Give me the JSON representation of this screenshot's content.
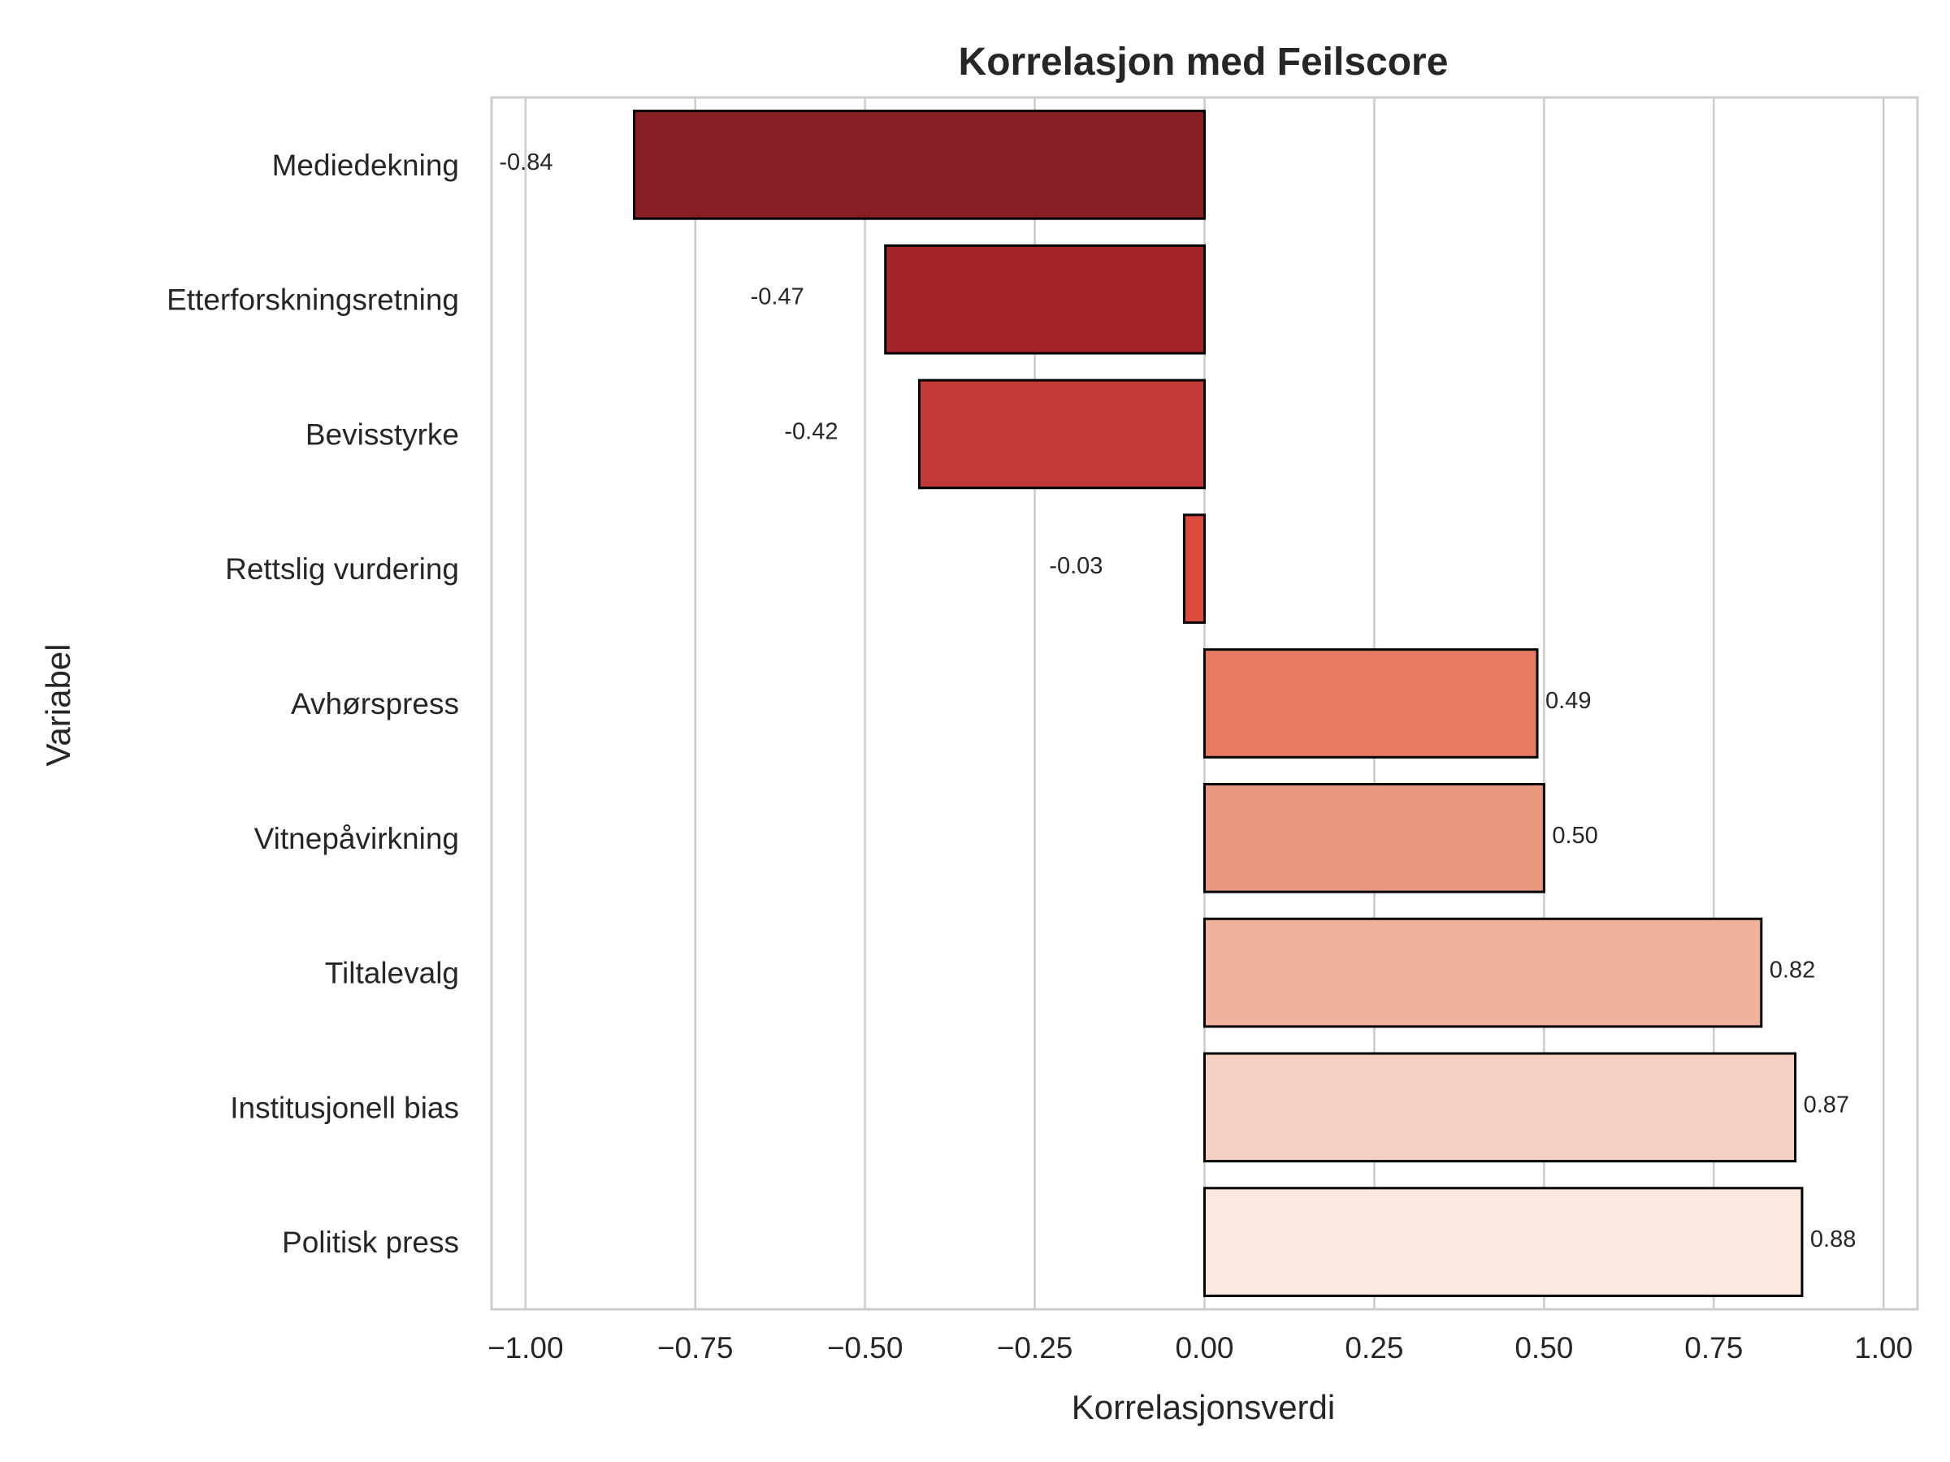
{
  "chart_data": {
    "type": "bar",
    "orientation": "horizontal",
    "title": "Korrelasjon med Feilscore",
    "xlabel": "Korrelasjonsverdi",
    "ylabel": "Variabel",
    "xlim": [
      -1.05,
      1.05
    ],
    "xticks": [
      -1.0,
      -0.75,
      -0.5,
      -0.25,
      0.0,
      0.25,
      0.5,
      0.75,
      1.0
    ],
    "xtick_labels": [
      "−1.00",
      "−0.75",
      "−0.50",
      "−0.25",
      "0.00",
      "0.25",
      "0.50",
      "0.75",
      "1.00"
    ],
    "grid": "vertical",
    "categories": [
      "Mediedekning",
      "Etterforskningsretning",
      "Bevisstyrke",
      "Rettslig vurdering",
      "Avhørspress",
      "Vitnepåvirkning",
      "Tiltalevalg",
      "Institusjonell bias",
      "Politisk press"
    ],
    "values": [
      -0.84,
      -0.47,
      -0.42,
      -0.03,
      0.49,
      0.5,
      0.82,
      0.87,
      0.88
    ],
    "value_labels": [
      "-0.84",
      "-0.47",
      "-0.42",
      "-0.03",
      "0.49",
      "0.50",
      "0.82",
      "0.87",
      "0.88"
    ],
    "colors": [
      "#861e24",
      "#a3242b",
      "#c13a37",
      "#dc4a3c",
      "#e87a64",
      "#eb9880",
      "#efb39c",
      "#f5d0c2",
      "#fbe8df"
    ],
    "edge_color": "#000000"
  }
}
